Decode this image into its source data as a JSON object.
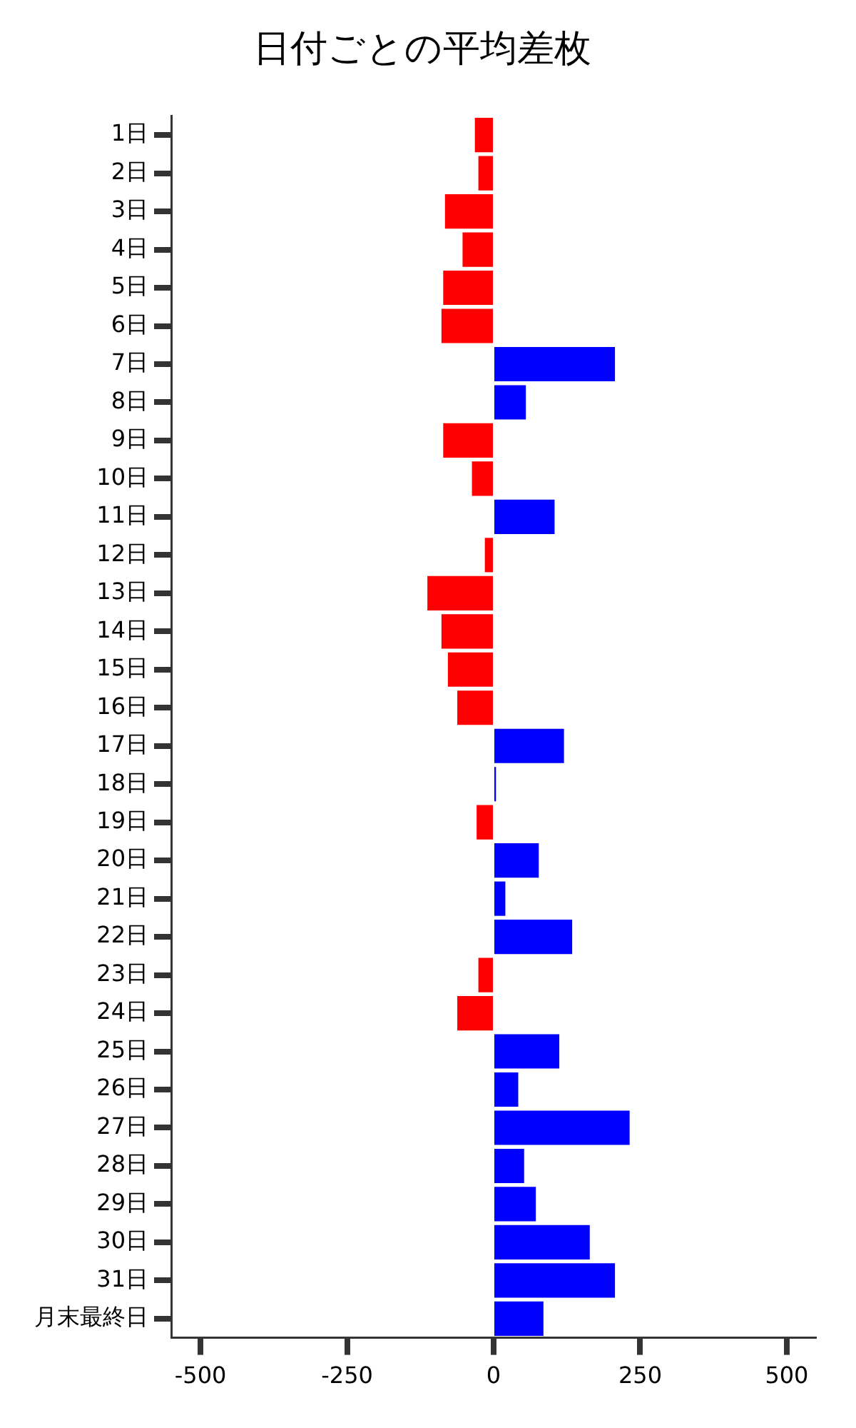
{
  "chart_data": {
    "type": "bar",
    "orientation": "horizontal",
    "title": "日付ごとの平均差枚",
    "categories": [
      "1日",
      "2日",
      "3日",
      "4日",
      "5日",
      "6日",
      "7日",
      "8日",
      "9日",
      "10日",
      "11日",
      "12日",
      "13日",
      "14日",
      "15日",
      "16日",
      "17日",
      "18日",
      "19日",
      "20日",
      "21日",
      "22日",
      "23日",
      "24日",
      "25日",
      "26日",
      "27日",
      "28日",
      "29日",
      "30日",
      "31日",
      "月末最終日"
    ],
    "values": [
      -32,
      -26,
      -83,
      -53,
      -86,
      -89,
      207,
      55,
      -86,
      -37,
      104,
      -15,
      -113,
      -89,
      -78,
      -62,
      120,
      4,
      -29,
      77,
      20,
      134,
      -26,
      -62,
      112,
      42,
      232,
      52,
      72,
      164,
      207,
      85
    ],
    "colors": [
      "#ff0000",
      "#ff0000",
      "#ff0000",
      "#ff0000",
      "#ff0000",
      "#ff0000",
      "#0000ff",
      "#0000ff",
      "#ff0000",
      "#ff0000",
      "#0000ff",
      "#ff0000",
      "#ff0000",
      "#ff0000",
      "#ff0000",
      "#ff0000",
      "#0000ff",
      "#0000ff",
      "#ff0000",
      "#0000ff",
      "#0000ff",
      "#0000ff",
      "#ff0000",
      "#ff0000",
      "#0000ff",
      "#0000ff",
      "#0000ff",
      "#0000ff",
      "#0000ff",
      "#0000ff",
      "#0000ff",
      "#0000ff"
    ],
    "xlim": [
      -550,
      550
    ],
    "xticks": [
      -500,
      -250,
      0,
      250,
      500
    ],
    "grid": false,
    "legend": false
  }
}
